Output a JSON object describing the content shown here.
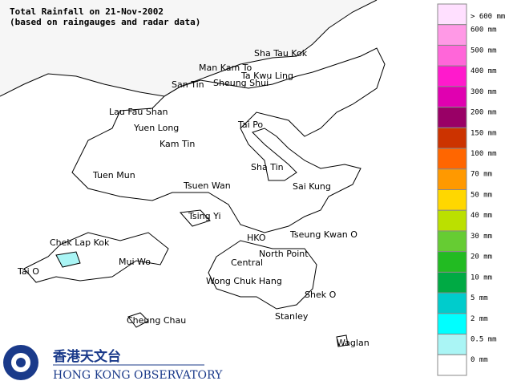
{
  "header": {
    "title": "Total Rainfall on 21-Nov-2002",
    "subtitle": "(based on raingauges and radar data)"
  },
  "places": [
    "Sha Tau Kok",
    "Man Kam To",
    "Ta Kwu Ling",
    "San Tin",
    "Sheung Shui",
    "Lau Fau Shan",
    "Yuen Long",
    "Tai Po",
    "Kam Tin",
    "Sha Tin",
    "Tuen Mun",
    "Tsuen Wan",
    "Sai Kung",
    "Tsing Yi",
    "Chek Lap Kok",
    "Tseung Kwan O",
    "HKO",
    "North Point",
    "Mui Wo",
    "Central",
    "Tai O",
    "Wong Chuk Hang",
    "Shek O",
    "Stanley",
    "Cheung Chau",
    "Waglan"
  ],
  "legend": [
    {
      "label": "> 600 mm",
      "color": "#ffe0ff"
    },
    {
      "label": "600 mm",
      "color": "#ff99e6"
    },
    {
      "label": "500 mm",
      "color": "#ff66d9"
    },
    {
      "label": "400 mm",
      "color": "#ff1acc"
    },
    {
      "label": "300 mm",
      "color": "#e000b0"
    },
    {
      "label": "200 mm",
      "color": "#990066"
    },
    {
      "label": "150 mm",
      "color": "#cc3300"
    },
    {
      "label": "100 mm",
      "color": "#ff6600"
    },
    {
      "label": "70 mm",
      "color": "#ff9900"
    },
    {
      "label": "50 mm",
      "color": "#ffd700"
    },
    {
      "label": "40 mm",
      "color": "#bbe000"
    },
    {
      "label": "30 mm",
      "color": "#66cc33"
    },
    {
      "label": "20 mm",
      "color": "#22bb22"
    },
    {
      "label": "10 mm",
      "color": "#00aa44"
    },
    {
      "label": "5 mm",
      "color": "#00cccc"
    },
    {
      "label": "2 mm",
      "color": "#00ffff"
    },
    {
      "label": "0.5 mm",
      "color": "#aaf5f5"
    },
    {
      "label": "0 mm",
      "color": "#ffffff"
    }
  ],
  "logo": {
    "chinese": "香港天文台",
    "english": "HONG KONG OBSERVATORY"
  }
}
